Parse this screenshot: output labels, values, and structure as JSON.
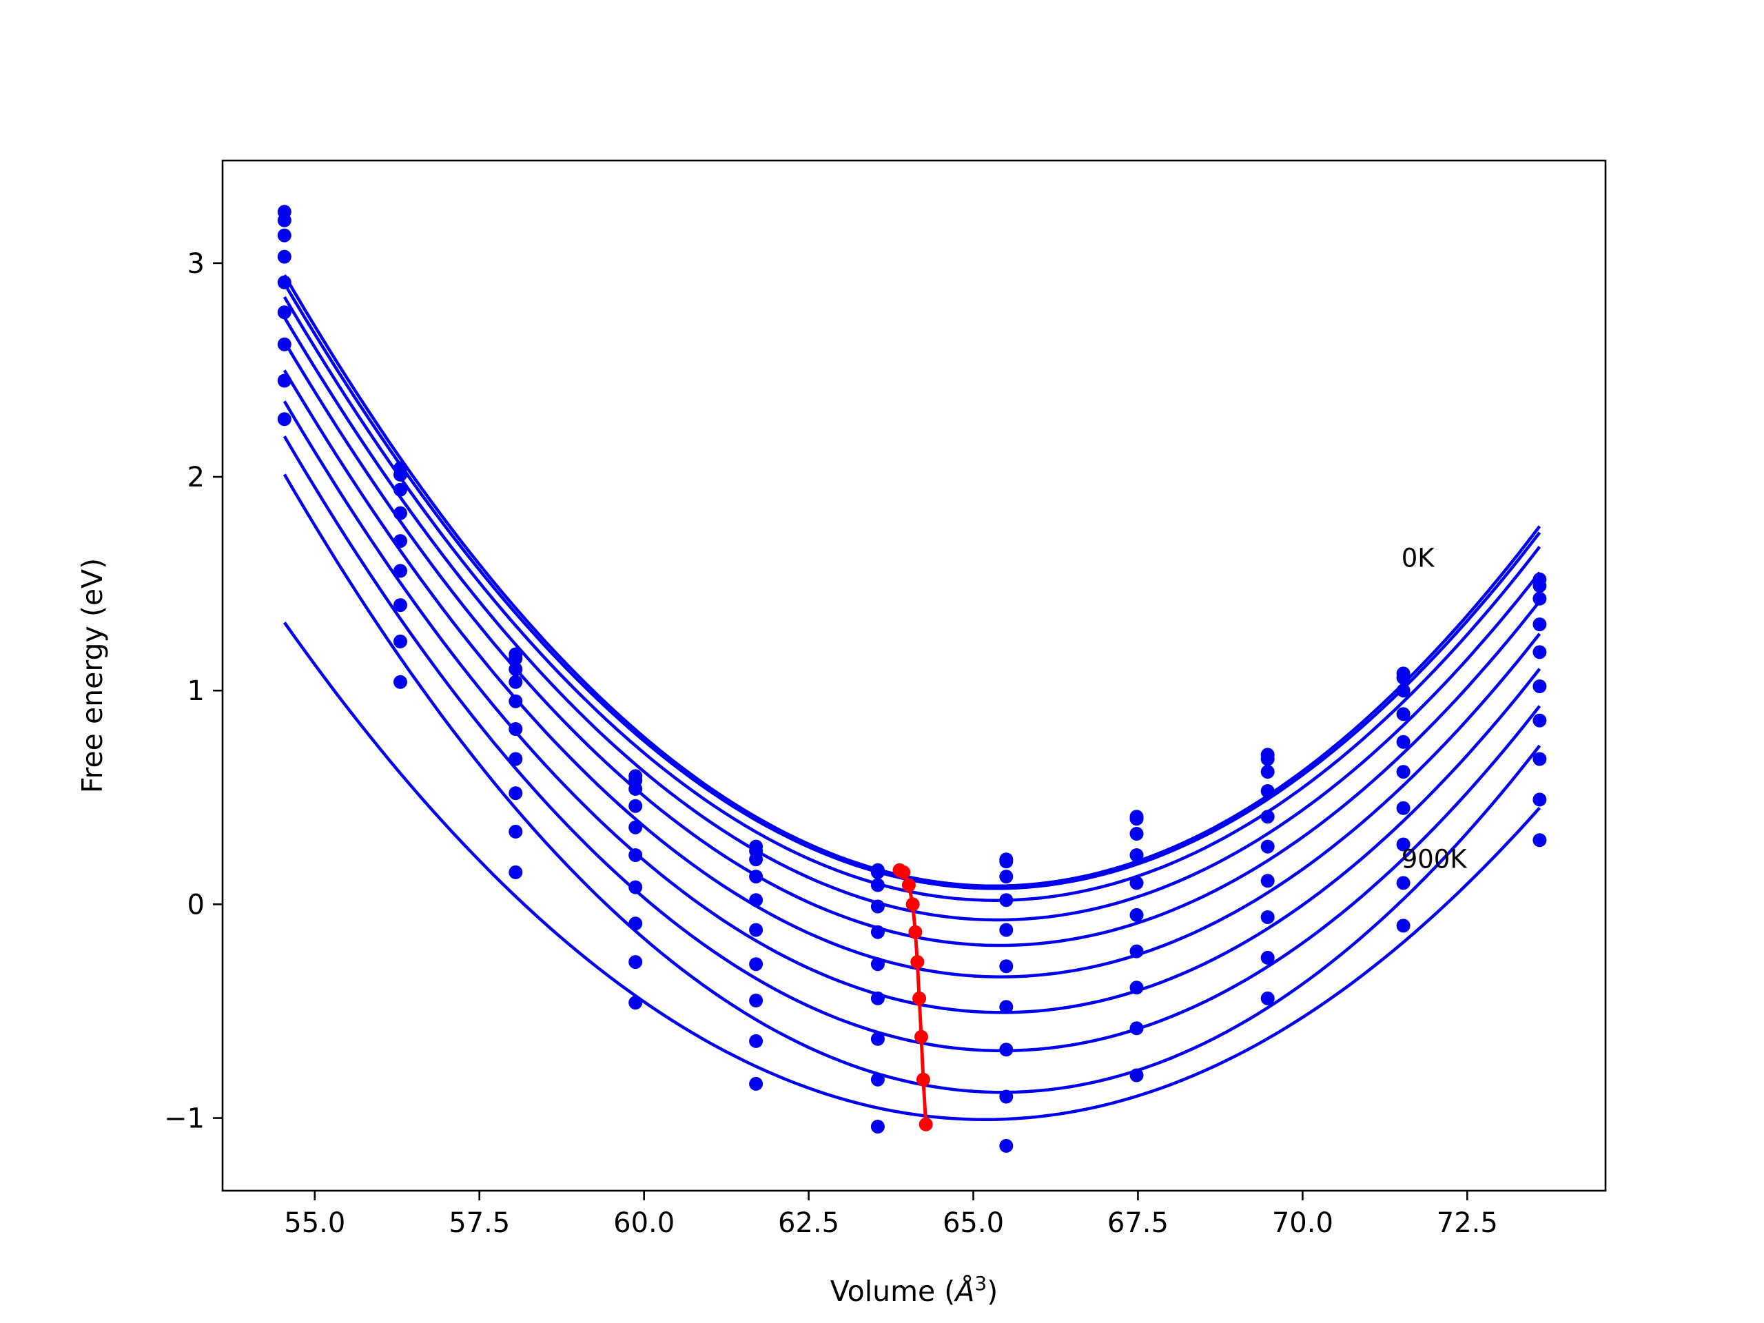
{
  "chart_data": {
    "type": "line",
    "xlabel": "Volume (",
    "xlabel_symbol": "Å",
    "xlabel_sup": "3",
    "xlabel_close": ")",
    "ylabel": "Free energy (eV)",
    "xlim": [
      53.6,
      74.6
    ],
    "ylim": [
      -1.34,
      3.48
    ],
    "x_ticks": [
      55.0,
      57.5,
      60.0,
      62.5,
      65.0,
      67.5,
      70.0,
      72.5
    ],
    "x_tick_labels": [
      "55.0",
      "57.5",
      "60.0",
      "62.5",
      "65.0",
      "67.5",
      "70.0",
      "72.5"
    ],
    "y_ticks": [
      -1,
      0,
      1,
      2,
      3
    ],
    "y_tick_labels": [
      "−1",
      "0",
      "1",
      "2",
      "3"
    ],
    "grid": false,
    "annotations": [
      {
        "text": "0K",
        "x": 71.5,
        "y": 1.58
      },
      {
        "text": "900K",
        "x": 71.5,
        "y": 0.17
      }
    ],
    "colors": {
      "fit": "#0000ee",
      "points": "#0000ee",
      "minimum": "#ff0000"
    },
    "volumes": [
      54.54,
      56.3,
      58.05,
      59.87,
      61.7,
      63.55,
      65.5,
      67.48,
      69.47,
      71.53,
      73.6
    ],
    "series": [
      {
        "values": [
          3.24,
          2.04,
          1.17,
          0.6,
          0.27,
          0.16,
          0.21,
          0.41,
          0.7,
          1.08,
          1.52
        ]
      },
      {
        "values": [
          3.2,
          2.01,
          1.15,
          0.58,
          0.25,
          0.15,
          0.2,
          0.4,
          0.68,
          1.06,
          1.49
        ]
      },
      {
        "values": [
          3.13,
          1.94,
          1.1,
          0.54,
          0.21,
          0.09,
          0.13,
          0.33,
          0.62,
          1.0,
          1.43
        ]
      },
      {
        "values": [
          3.03,
          1.83,
          1.04,
          0.46,
          0.13,
          -0.01,
          0.02,
          0.23,
          0.53,
          0.89,
          1.31
        ]
      },
      {
        "values": [
          2.91,
          1.7,
          0.95,
          0.36,
          0.02,
          -0.13,
          -0.12,
          0.1,
          0.41,
          0.76,
          1.18
        ]
      },
      {
        "values": [
          2.77,
          1.56,
          0.82,
          0.23,
          -0.12,
          -0.28,
          -0.29,
          -0.05,
          0.27,
          0.62,
          1.02
        ]
      },
      {
        "values": [
          2.62,
          1.4,
          0.68,
          0.08,
          -0.28,
          -0.44,
          -0.48,
          -0.22,
          0.11,
          0.45,
          0.86
        ]
      },
      {
        "values": [
          2.45,
          1.23,
          0.52,
          -0.09,
          -0.45,
          -0.63,
          -0.68,
          -0.39,
          -0.06,
          0.28,
          0.68
        ]
      },
      {
        "values": [
          2.27,
          1.04,
          0.34,
          -0.27,
          -0.64,
          -0.82,
          -0.9,
          -0.58,
          -0.25,
          0.1,
          0.49
        ]
      },
      {
        "values": [
          null,
          null,
          0.15,
          -0.46,
          -0.84,
          -1.04,
          -1.13,
          -0.8,
          -0.44,
          -0.1,
          0.3
        ]
      }
    ],
    "fit_minima": {
      "x": [
        63.88,
        63.94,
        64.02,
        64.08,
        64.12,
        64.15,
        64.18,
        64.21,
        64.24,
        64.28
      ],
      "y": [
        0.16,
        0.15,
        0.09,
        0.0,
        -0.13,
        -0.27,
        -0.44,
        -0.62,
        -0.82,
        -1.03
      ]
    }
  }
}
